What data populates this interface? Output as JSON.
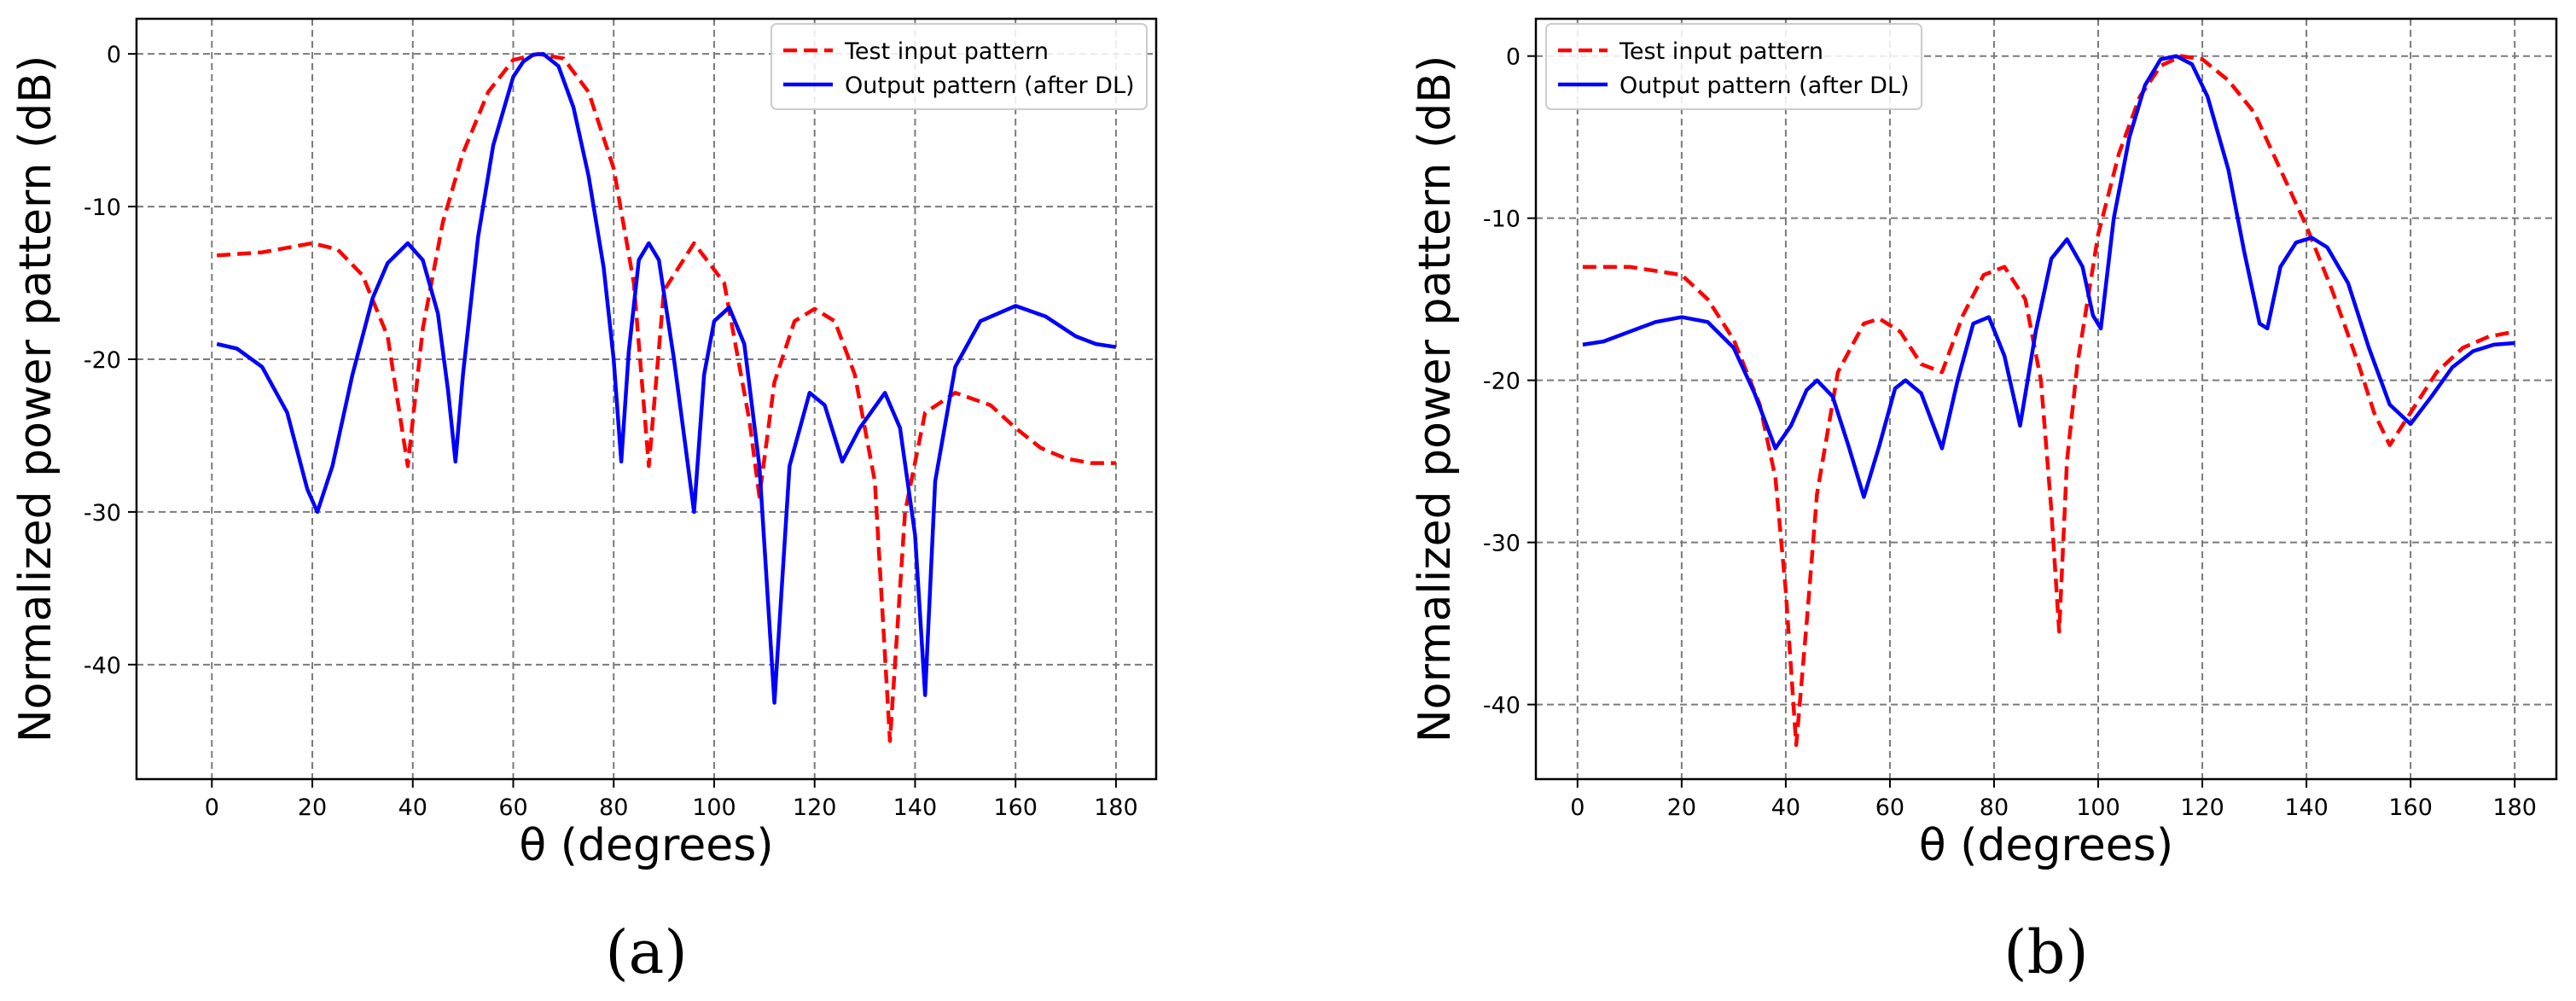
{
  "chart_data": [
    {
      "type": "line",
      "panel_label": "(a)",
      "xlabel": "θ (degrees)",
      "ylabel": "Normalized power pattern (dB)",
      "xlim": [
        -15,
        188
      ],
      "ylim": [
        -47.5,
        2.3
      ],
      "xticks": [
        0,
        20,
        40,
        60,
        80,
        100,
        120,
        140,
        160,
        180
      ],
      "yticks": [
        0,
        -10,
        -20,
        -30,
        -40
      ],
      "grid": true,
      "legend_position": "top-right",
      "series": [
        {
          "name": "Test input pattern",
          "color": "#ff0000",
          "style": "dashed",
          "x": [
            1,
            10,
            20,
            25,
            30,
            35,
            39,
            42,
            46,
            50,
            55,
            60,
            65,
            70,
            75,
            80,
            84,
            87,
            90,
            96,
            102,
            107,
            109,
            112,
            116,
            120,
            124,
            128,
            132,
            135,
            138,
            142,
            148,
            155,
            160,
            165,
            170,
            175,
            180
          ],
          "y": [
            -13.2,
            -13,
            -12.4,
            -12.8,
            -14.5,
            -18.5,
            -27,
            -18,
            -11,
            -6.5,
            -2.5,
            -0.4,
            0,
            -0.3,
            -2.5,
            -7.5,
            -15,
            -27,
            -15.5,
            -12.4,
            -15,
            -24,
            -29,
            -21.5,
            -17.5,
            -16.7,
            -17.5,
            -21,
            -28,
            -45,
            -30,
            -23.5,
            -22.2,
            -23,
            -24.5,
            -25.8,
            -26.5,
            -26.8,
            -26.8
          ]
        },
        {
          "name": "Output pattern (after DL)",
          "color": "#0000ff",
          "style": "solid",
          "x": [
            1,
            5,
            10,
            15,
            19,
            21,
            24,
            28,
            32,
            35,
            39,
            42,
            45,
            47,
            48.5,
            50,
            53,
            56,
            60,
            62,
            64,
            66,
            69,
            72,
            75,
            78,
            80,
            81.5,
            83,
            85,
            87,
            89,
            92,
            94,
            96,
            98,
            100,
            103,
            106,
            109,
            112,
            115,
            119,
            122,
            125.5,
            129,
            134,
            137,
            140,
            142,
            144,
            148,
            153,
            160,
            166,
            172,
            176,
            180
          ],
          "y": [
            -19,
            -19.3,
            -20.5,
            -23.5,
            -28.5,
            -30,
            -27,
            -21,
            -16,
            -13.7,
            -12.4,
            -13.5,
            -17,
            -22,
            -26.7,
            -21,
            -12,
            -6,
            -1.5,
            -0.5,
            -0.05,
            0,
            -0.8,
            -3.5,
            -8,
            -14,
            -20,
            -26.7,
            -19.5,
            -13.5,
            -12.4,
            -13.5,
            -20,
            -25,
            -30,
            -21,
            -17.5,
            -16.6,
            -19,
            -27,
            -42.5,
            -27,
            -22.2,
            -23,
            -26.7,
            -24.5,
            -22.2,
            -24.5,
            -31.5,
            -42,
            -28,
            -20.5,
            -17.5,
            -16.5,
            -17.2,
            -18.5,
            -19,
            -19.2
          ]
        }
      ]
    },
    {
      "type": "line",
      "panel_label": "(b)",
      "xlabel": "θ (degrees)",
      "ylabel": "Normalized power pattern (dB)",
      "xlim": [
        -8,
        188
      ],
      "ylim": [
        -44.6,
        2.3
      ],
      "xticks": [
        0,
        20,
        40,
        60,
        80,
        100,
        120,
        140,
        160,
        180
      ],
      "yticks": [
        0,
        -10,
        -20,
        -30,
        -40
      ],
      "grid": true,
      "legend_position": "top-left",
      "series": [
        {
          "name": "Test input pattern",
          "color": "#ff0000",
          "style": "dashed",
          "x": [
            1,
            10,
            20,
            25,
            30,
            35,
            38,
            40,
            42,
            44,
            46,
            50,
            55,
            58,
            62,
            66,
            70,
            74,
            78,
            82,
            86,
            89,
            91,
            92.5,
            94,
            96,
            100,
            104,
            108,
            112,
            116,
            120,
            125,
            130,
            135,
            140,
            145,
            150,
            153,
            156,
            160,
            165,
            170,
            175,
            180
          ],
          "y": [
            -13,
            -13,
            -13.5,
            -15,
            -17.5,
            -21.5,
            -26,
            -33,
            -42.5,
            -35,
            -27,
            -19.5,
            -16.5,
            -16.2,
            -17,
            -19,
            -19.5,
            -16,
            -13.5,
            -13,
            -15,
            -20,
            -28,
            -35.5,
            -25,
            -19,
            -11,
            -6,
            -2.5,
            -0.6,
            0,
            -0.2,
            -1.5,
            -3.5,
            -7,
            -10.5,
            -14.5,
            -19,
            -22,
            -24,
            -22,
            -19.5,
            -18,
            -17.3,
            -17
          ]
        },
        {
          "name": "Output pattern (after DL)",
          "color": "#0000ff",
          "style": "solid",
          "x": [
            1,
            5,
            10,
            15,
            20,
            25,
            30,
            34,
            38,
            41,
            44,
            46,
            49,
            52,
            55,
            58,
            61,
            63,
            66,
            70,
            73,
            76,
            79,
            82,
            85,
            88,
            91,
            94,
            97,
            99,
            100.5,
            103,
            106,
            109,
            112,
            115,
            118,
            121,
            125,
            128,
            131,
            132.5,
            135,
            138,
            141,
            144,
            148,
            152,
            156,
            160,
            164,
            168,
            172,
            176,
            180
          ],
          "y": [
            -17.8,
            -17.6,
            -17,
            -16.4,
            -16.1,
            -16.4,
            -18,
            -20.8,
            -24.2,
            -22.8,
            -20.6,
            -20,
            -21,
            -24,
            -27.2,
            -24,
            -20.5,
            -20,
            -20.8,
            -24.2,
            -20,
            -16.5,
            -16.1,
            -18.5,
            -22.8,
            -17,
            -12.5,
            -11.3,
            -13,
            -16,
            -16.8,
            -10,
            -5,
            -1.8,
            -0.2,
            0,
            -0.5,
            -2.5,
            -7,
            -12,
            -16.5,
            -16.8,
            -13,
            -11.5,
            -11.2,
            -11.8,
            -14,
            -18,
            -21.5,
            -22.7,
            -21,
            -19.2,
            -18.2,
            -17.8,
            -17.7
          ]
        }
      ]
    }
  ]
}
